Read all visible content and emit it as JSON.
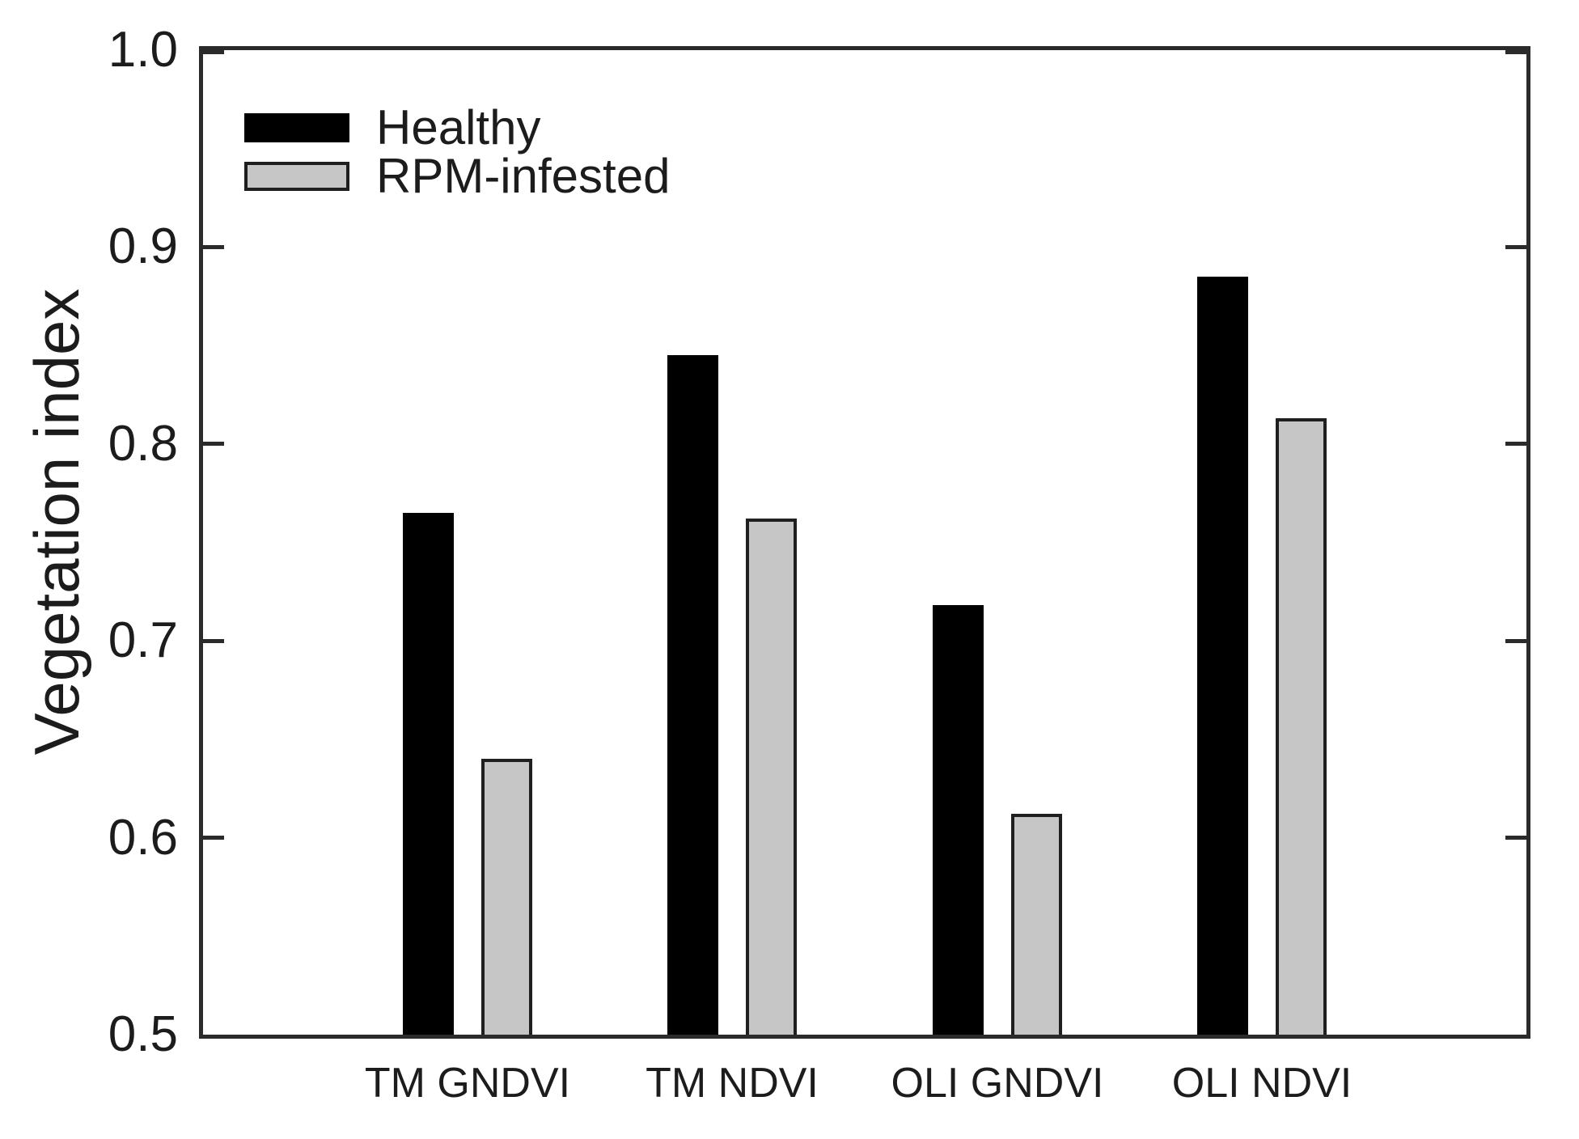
{
  "figure": {
    "background_color": "#ffffff",
    "text_color": "#1c1c1c",
    "axis_color": "#2b2b2b"
  },
  "chart_data": {
    "type": "bar",
    "title": "",
    "xlabel": "",
    "ylabel": "Vegetation index",
    "categories": [
      "TM GNDVI",
      "TM NDVI",
      "OLI GNDVI",
      "OLI NDVI"
    ],
    "series": [
      {
        "name": "Healthy",
        "color": "#000000",
        "values": [
          0.765,
          0.845,
          0.718,
          0.885
        ]
      },
      {
        "name": "RPM-infested",
        "color": "#c6c6c6",
        "border_color": "#1f1f1f",
        "values": [
          0.64,
          0.762,
          0.612,
          0.813
        ]
      }
    ],
    "ylim": [
      0.5,
      1.0
    ],
    "yticks": [
      1.0,
      0.9,
      0.8,
      0.7,
      0.6,
      0.5
    ],
    "ytick_labels": [
      "1.0",
      "0.9",
      "0.8",
      "0.7",
      "0.6",
      "0.5"
    ],
    "grid": false,
    "legend_position": "inside-top-left",
    "tick_style": "inward-both-sides"
  }
}
